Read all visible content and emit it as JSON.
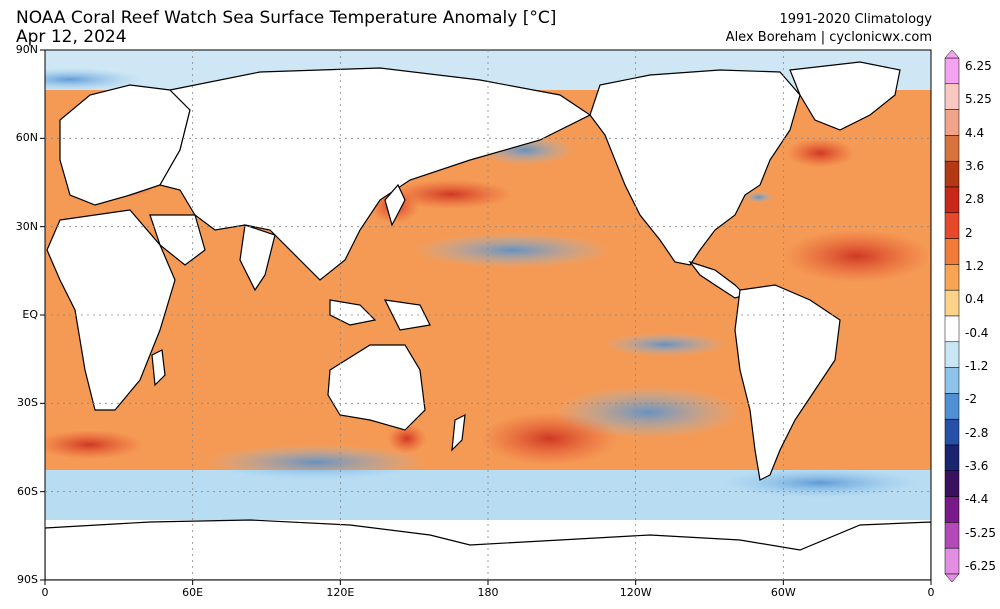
{
  "header": {
    "title": "NOAA Coral Reef Watch Sea Surface Temperature Anomaly [°C]",
    "date": "Apr 12, 2024",
    "climatology": "1991-2020 Climatology",
    "credit": "Alex Boreham | cyclonicwx.com"
  },
  "axes": {
    "lat_ticks": [
      {
        "value": 90,
        "label": "90N"
      },
      {
        "value": 60,
        "label": "60N"
      },
      {
        "value": 30,
        "label": "30N"
      },
      {
        "value": 0,
        "label": "EQ"
      },
      {
        "value": -30,
        "label": "30S"
      },
      {
        "value": -60,
        "label": "60S"
      },
      {
        "value": -90,
        "label": "90S"
      }
    ],
    "lon_ticks": [
      {
        "value": 0,
        "label": "0"
      },
      {
        "value": 60,
        "label": "60E"
      },
      {
        "value": 120,
        "label": "120E"
      },
      {
        "value": 180,
        "label": "180"
      },
      {
        "value": 240,
        "label": "120W"
      },
      {
        "value": 300,
        "label": "60W"
      },
      {
        "value": 360,
        "label": "0"
      }
    ]
  },
  "colorbar": {
    "labels": [
      "6.25",
      "5.25",
      "4.4",
      "3.6",
      "2.8",
      "2",
      "1.2",
      "0.4",
      "-0.4",
      "-1.2",
      "-2",
      "-2.8",
      "-3.6",
      "-4.4",
      "-5.25",
      "-6.25"
    ],
    "colors": [
      "#f4a3f0",
      "#f9c8c0",
      "#f2a48a",
      "#d9733d",
      "#b33a14",
      "#c8271a",
      "#e5482a",
      "#f07a38",
      "#f7a552",
      "#fbd48a",
      "#ffffff",
      "#c9e6f5",
      "#8ec4ea",
      "#4f8fd3",
      "#2750a8",
      "#1a2470",
      "#3a1060",
      "#7a1a8a",
      "#b44ab8",
      "#e38ee3"
    ]
  },
  "map_regions": {
    "warm_strong": [
      {
        "lon": 142,
        "lat": 37,
        "rx": 10,
        "ry": 6
      },
      {
        "lon": 165,
        "lat": 41,
        "rx": 25,
        "ry": 5
      },
      {
        "lon": 32,
        "lat": 43,
        "rx": 12,
        "ry": 3
      },
      {
        "lon": 147,
        "lat": -42,
        "rx": 8,
        "ry": 5
      },
      {
        "lon": 205,
        "lat": -42,
        "rx": 28,
        "ry": 9
      },
      {
        "lon": 18,
        "lat": -44,
        "rx": 22,
        "ry": 5
      },
      {
        "lon": 330,
        "lat": 20,
        "rx": 30,
        "ry": 9
      },
      {
        "lon": 315,
        "lat": 55,
        "rx": 14,
        "ry": 5
      }
    ],
    "cool": [
      {
        "lon": 245,
        "lat": -33,
        "rx": 38,
        "ry": 9
      },
      {
        "lon": 315,
        "lat": -57,
        "rx": 40,
        "ry": 5
      },
      {
        "lon": 110,
        "lat": -50,
        "rx": 45,
        "ry": 6
      },
      {
        "lon": 190,
        "lat": 22,
        "rx": 40,
        "ry": 6
      },
      {
        "lon": 10,
        "lat": 80,
        "rx": 30,
        "ry": 4
      },
      {
        "lon": 290,
        "lat": 40,
        "rx": 6,
        "ry": 2
      },
      {
        "lon": 195,
        "lat": 56,
        "rx": 20,
        "ry": 5
      },
      {
        "lon": 252,
        "lat": -10,
        "rx": 25,
        "ry": 4
      }
    ]
  }
}
